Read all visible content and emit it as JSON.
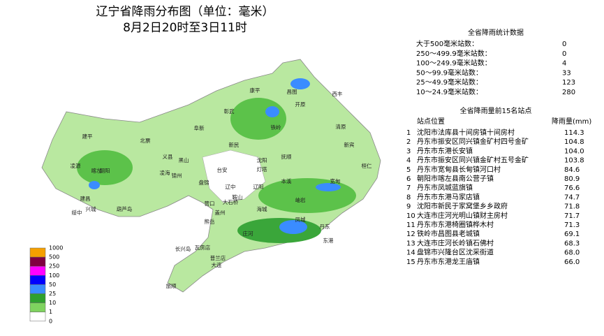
{
  "header": {
    "title": "辽宁省降雨分布图（单位：毫米）",
    "subtitle": "8月2日20时至3日11时"
  },
  "stats": {
    "title": "全省降雨统计数据",
    "rows": [
      {
        "label": "大于500毫米站数：",
        "value": 0
      },
      {
        "label": "250～499.9毫米站数：",
        "value": 0
      },
      {
        "label": "100～249.9毫米站数：",
        "value": 4
      },
      {
        "label": "50～99.9毫米站数：",
        "value": 33
      },
      {
        "label": "25～49.9毫米站数：",
        "value": 123
      },
      {
        "label": "10～24.9毫米站数：",
        "value": 280
      }
    ]
  },
  "top": {
    "title": "全省降雨量前15名站点",
    "col_station": "站点位置",
    "col_value": "降雨量(mm)",
    "rows": [
      {
        "rank": 1,
        "station": "沈阳市法库县十间房镇十间房村",
        "value": 114.3,
        "value_label": "114.3"
      },
      {
        "rank": 2,
        "station": "丹东市振安区同兴镇金矿村四号金矿",
        "value": 104.8,
        "value_label": "104.8"
      },
      {
        "rank": 3,
        "station": "丹东市东港长安镇",
        "value": 104.0,
        "value_label": "104.0"
      },
      {
        "rank": 4,
        "station": "丹东市振安区同兴镇金矿村五号金矿",
        "value": 103.8,
        "value_label": "103.8"
      },
      {
        "rank": 5,
        "station": "丹东市宽甸县长甸镇河口村",
        "value": 84.6,
        "value_label": "84.6"
      },
      {
        "rank": 6,
        "station": "朝阳市喀左县南公营子镇",
        "value": 80.9,
        "value_label": "80.9"
      },
      {
        "rank": 7,
        "station": "丹东市凤城蓝旗镇",
        "value": 76.6,
        "value_label": "76.6"
      },
      {
        "rank": 8,
        "station": "丹东市东港马家店镇",
        "value": 74.7,
        "value_label": "74.7"
      },
      {
        "rank": 9,
        "station": "沈阳市新民于家窝堡乡乡政府",
        "value": 71.8,
        "value_label": "71.8"
      },
      {
        "rank": 10,
        "station": "大连市庄河光明山镇财主房村",
        "value": 71.7,
        "value_label": "71.7"
      },
      {
        "rank": 11,
        "station": "丹东市东港椅圈镇桦木村",
        "value": 71.3,
        "value_label": "71.3"
      },
      {
        "rank": 12,
        "station": "铁岭市昌图县老城镇",
        "value": 69.1,
        "value_label": "69.1"
      },
      {
        "rank": 13,
        "station": "大连市庄河长岭镇石佛村",
        "value": 68.3,
        "value_label": "68.3"
      },
      {
        "rank": 14,
        "station": "盘锦市兴隆台区沈采街道",
        "value": 68.0,
        "value_label": "68.0"
      },
      {
        "rank": 15,
        "station": "丹东市东港龙王庙镇",
        "value": 66.0,
        "value_label": "66.0"
      }
    ]
  },
  "legend": {
    "levels": [
      1000,
      500,
      250,
      100,
      50,
      25,
      10,
      1,
      0
    ],
    "colors": [
      "#f5a000",
      "#800040",
      "#ff00ff",
      "#0000ff",
      "#3a8cff",
      "#2ea02e",
      "#7fd35f",
      "#ffffff"
    ]
  },
  "places": [
    "康平",
    "昌图",
    "西丰",
    "彰武",
    "开原",
    "阜新",
    "铁岭",
    "建平",
    "北票",
    "清原",
    "新宾",
    "沈阳",
    "抚顺",
    "朝阳",
    "黑山",
    "新民",
    "辽中",
    "本溪",
    "桓仁",
    "凌源",
    "建昌",
    "喀左",
    "兴城",
    "绥中",
    "葫芦岛",
    "锦州",
    "盘锦",
    "鞍山",
    "辽阳",
    "海城",
    "营口",
    "盖州",
    "岫岩",
    "凤城",
    "丹东",
    "宽甸",
    "庄河",
    "大连",
    "瓦房店",
    "普兰店",
    "长兴岛",
    "旅顺",
    "东港",
    "大石桥",
    "熊岳",
    "义县",
    "凌海",
    "台安",
    "灯塔"
  ]
}
